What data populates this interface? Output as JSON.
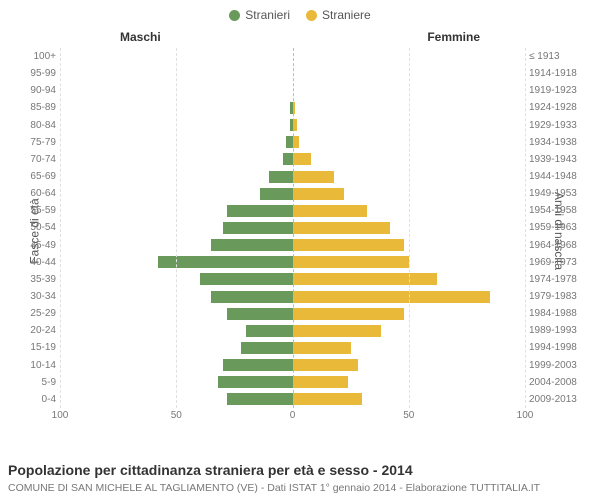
{
  "legend": {
    "male_label": "Stranieri",
    "female_label": "Straniere"
  },
  "headers": {
    "left": "Maschi",
    "right": "Femmine"
  },
  "axis_titles": {
    "left": "Fasce di età",
    "right": "Anni di nascita"
  },
  "chart": {
    "type": "population-pyramid",
    "male_color": "#6a9a5b",
    "female_color": "#e9b93a",
    "background_color": "#ffffff",
    "grid_color": "#e0e0e0",
    "center_line_color": "#bbbbbb",
    "xlim": 100,
    "x_ticks_left": [
      100,
      50,
      0
    ],
    "x_ticks_right": [
      0,
      50,
      100
    ],
    "label_fontsize": 10,
    "axis_title_fontsize": 12,
    "header_fontsize": 12,
    "rows": [
      {
        "age": "100+",
        "birth": "≤ 1913",
        "male": 0,
        "female": 0
      },
      {
        "age": "95-99",
        "birth": "1914-1918",
        "male": 0,
        "female": 0
      },
      {
        "age": "90-94",
        "birth": "1919-1923",
        "male": 0,
        "female": 0
      },
      {
        "age": "85-89",
        "birth": "1924-1928",
        "male": 1,
        "female": 1
      },
      {
        "age": "80-84",
        "birth": "1929-1933",
        "male": 1,
        "female": 2
      },
      {
        "age": "75-79",
        "birth": "1934-1938",
        "male": 3,
        "female": 3
      },
      {
        "age": "70-74",
        "birth": "1939-1943",
        "male": 4,
        "female": 8
      },
      {
        "age": "65-69",
        "birth": "1944-1948",
        "male": 10,
        "female": 18
      },
      {
        "age": "60-64",
        "birth": "1949-1953",
        "male": 14,
        "female": 22
      },
      {
        "age": "55-59",
        "birth": "1954-1958",
        "male": 28,
        "female": 32
      },
      {
        "age": "50-54",
        "birth": "1959-1963",
        "male": 30,
        "female": 42
      },
      {
        "age": "45-49",
        "birth": "1964-1968",
        "male": 35,
        "female": 48
      },
      {
        "age": "40-44",
        "birth": "1969-1973",
        "male": 58,
        "female": 50
      },
      {
        "age": "35-39",
        "birth": "1974-1978",
        "male": 40,
        "female": 62
      },
      {
        "age": "30-34",
        "birth": "1979-1983",
        "male": 35,
        "female": 85
      },
      {
        "age": "25-29",
        "birth": "1984-1988",
        "male": 28,
        "female": 48
      },
      {
        "age": "20-24",
        "birth": "1989-1993",
        "male": 20,
        "female": 38
      },
      {
        "age": "15-19",
        "birth": "1994-1998",
        "male": 22,
        "female": 25
      },
      {
        "age": "10-14",
        "birth": "1999-2003",
        "male": 30,
        "female": 28
      },
      {
        "age": "5-9",
        "birth": "2004-2008",
        "male": 32,
        "female": 24
      },
      {
        "age": "0-4",
        "birth": "2009-2013",
        "male": 28,
        "female": 30
      }
    ]
  },
  "caption": "Popolazione per cittadinanza straniera per età e sesso - 2014",
  "subcaption": "COMUNE DI SAN MICHELE AL TAGLIAMENTO (VE) - Dati ISTAT 1° gennaio 2014 - Elaborazione TUTTITALIA.IT"
}
